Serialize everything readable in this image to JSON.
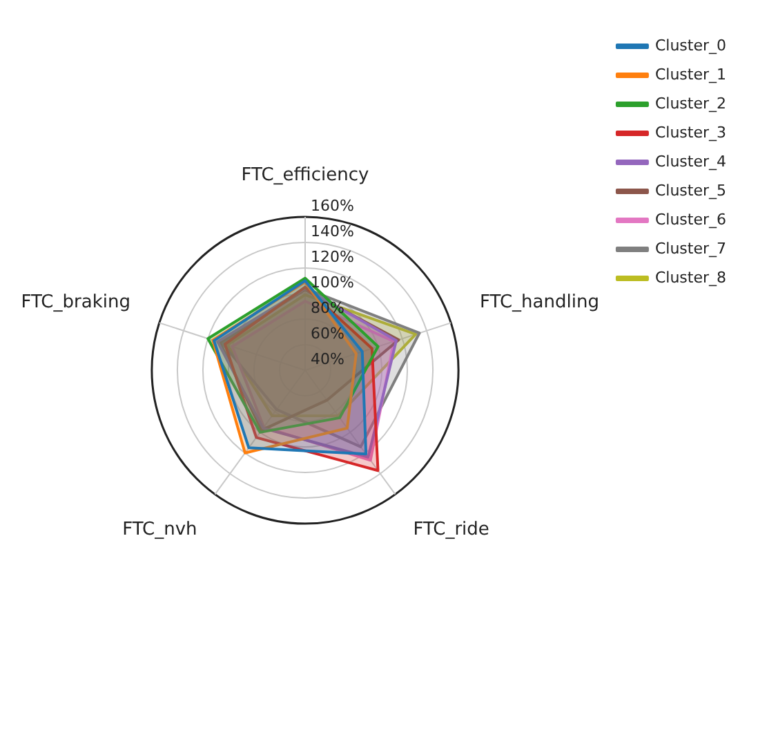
{
  "chart_data": {
    "type": "radar",
    "categories": [
      "FTC_efficiency",
      "FTC_handling",
      "FTC_ride",
      "FTC_nvh",
      "FTC_braking"
    ],
    "series": [
      {
        "name": "Cluster_0",
        "color": "#1f77b4",
        "values": [
          110,
          87,
          121,
          115,
          115
        ]
      },
      {
        "name": "Cluster_1",
        "color": "#ff7f0e",
        "values": [
          109,
          82,
          96,
          120,
          116
        ]
      },
      {
        "name": "Cluster_2",
        "color": "#2ca02c",
        "values": [
          112,
          100,
          86,
          100,
          120
        ]
      },
      {
        "name": "Cluster_3",
        "color": "#d62728",
        "values": [
          105,
          95,
          137,
          105,
          106
        ]
      },
      {
        "name": "Cluster_4",
        "color": "#9467bd",
        "values": [
          104,
          115,
          124,
          96,
          112
        ]
      },
      {
        "name": "Cluster_5",
        "color": "#8c564b",
        "values": [
          103,
          117,
          69,
          98,
          110
        ]
      },
      {
        "name": "Cluster_6",
        "color": "#e377c2",
        "values": [
          94,
          113,
          127,
          95,
          100
        ]
      },
      {
        "name": "Cluster_7",
        "color": "#7f7f7f",
        "values": [
          104,
          134,
          114,
          78,
          108
        ]
      },
      {
        "name": "Cluster_8",
        "color": "#bcbd22",
        "values": [
          99,
          131,
          84,
          84,
          104
        ]
      }
    ],
    "ylim": [
      40,
      160
    ],
    "yticks": [
      {
        "value": 40,
        "label": "40%"
      },
      {
        "value": 60,
        "label": "60%"
      },
      {
        "value": 80,
        "label": "80%"
      },
      {
        "value": 100,
        "label": "100%"
      },
      {
        "value": 120,
        "label": "120%"
      },
      {
        "value": 140,
        "label": "140%"
      },
      {
        "value": 160,
        "label": "160%"
      }
    ],
    "grid": true,
    "legend": "top right",
    "marker": "none",
    "line_style": "solid"
  }
}
